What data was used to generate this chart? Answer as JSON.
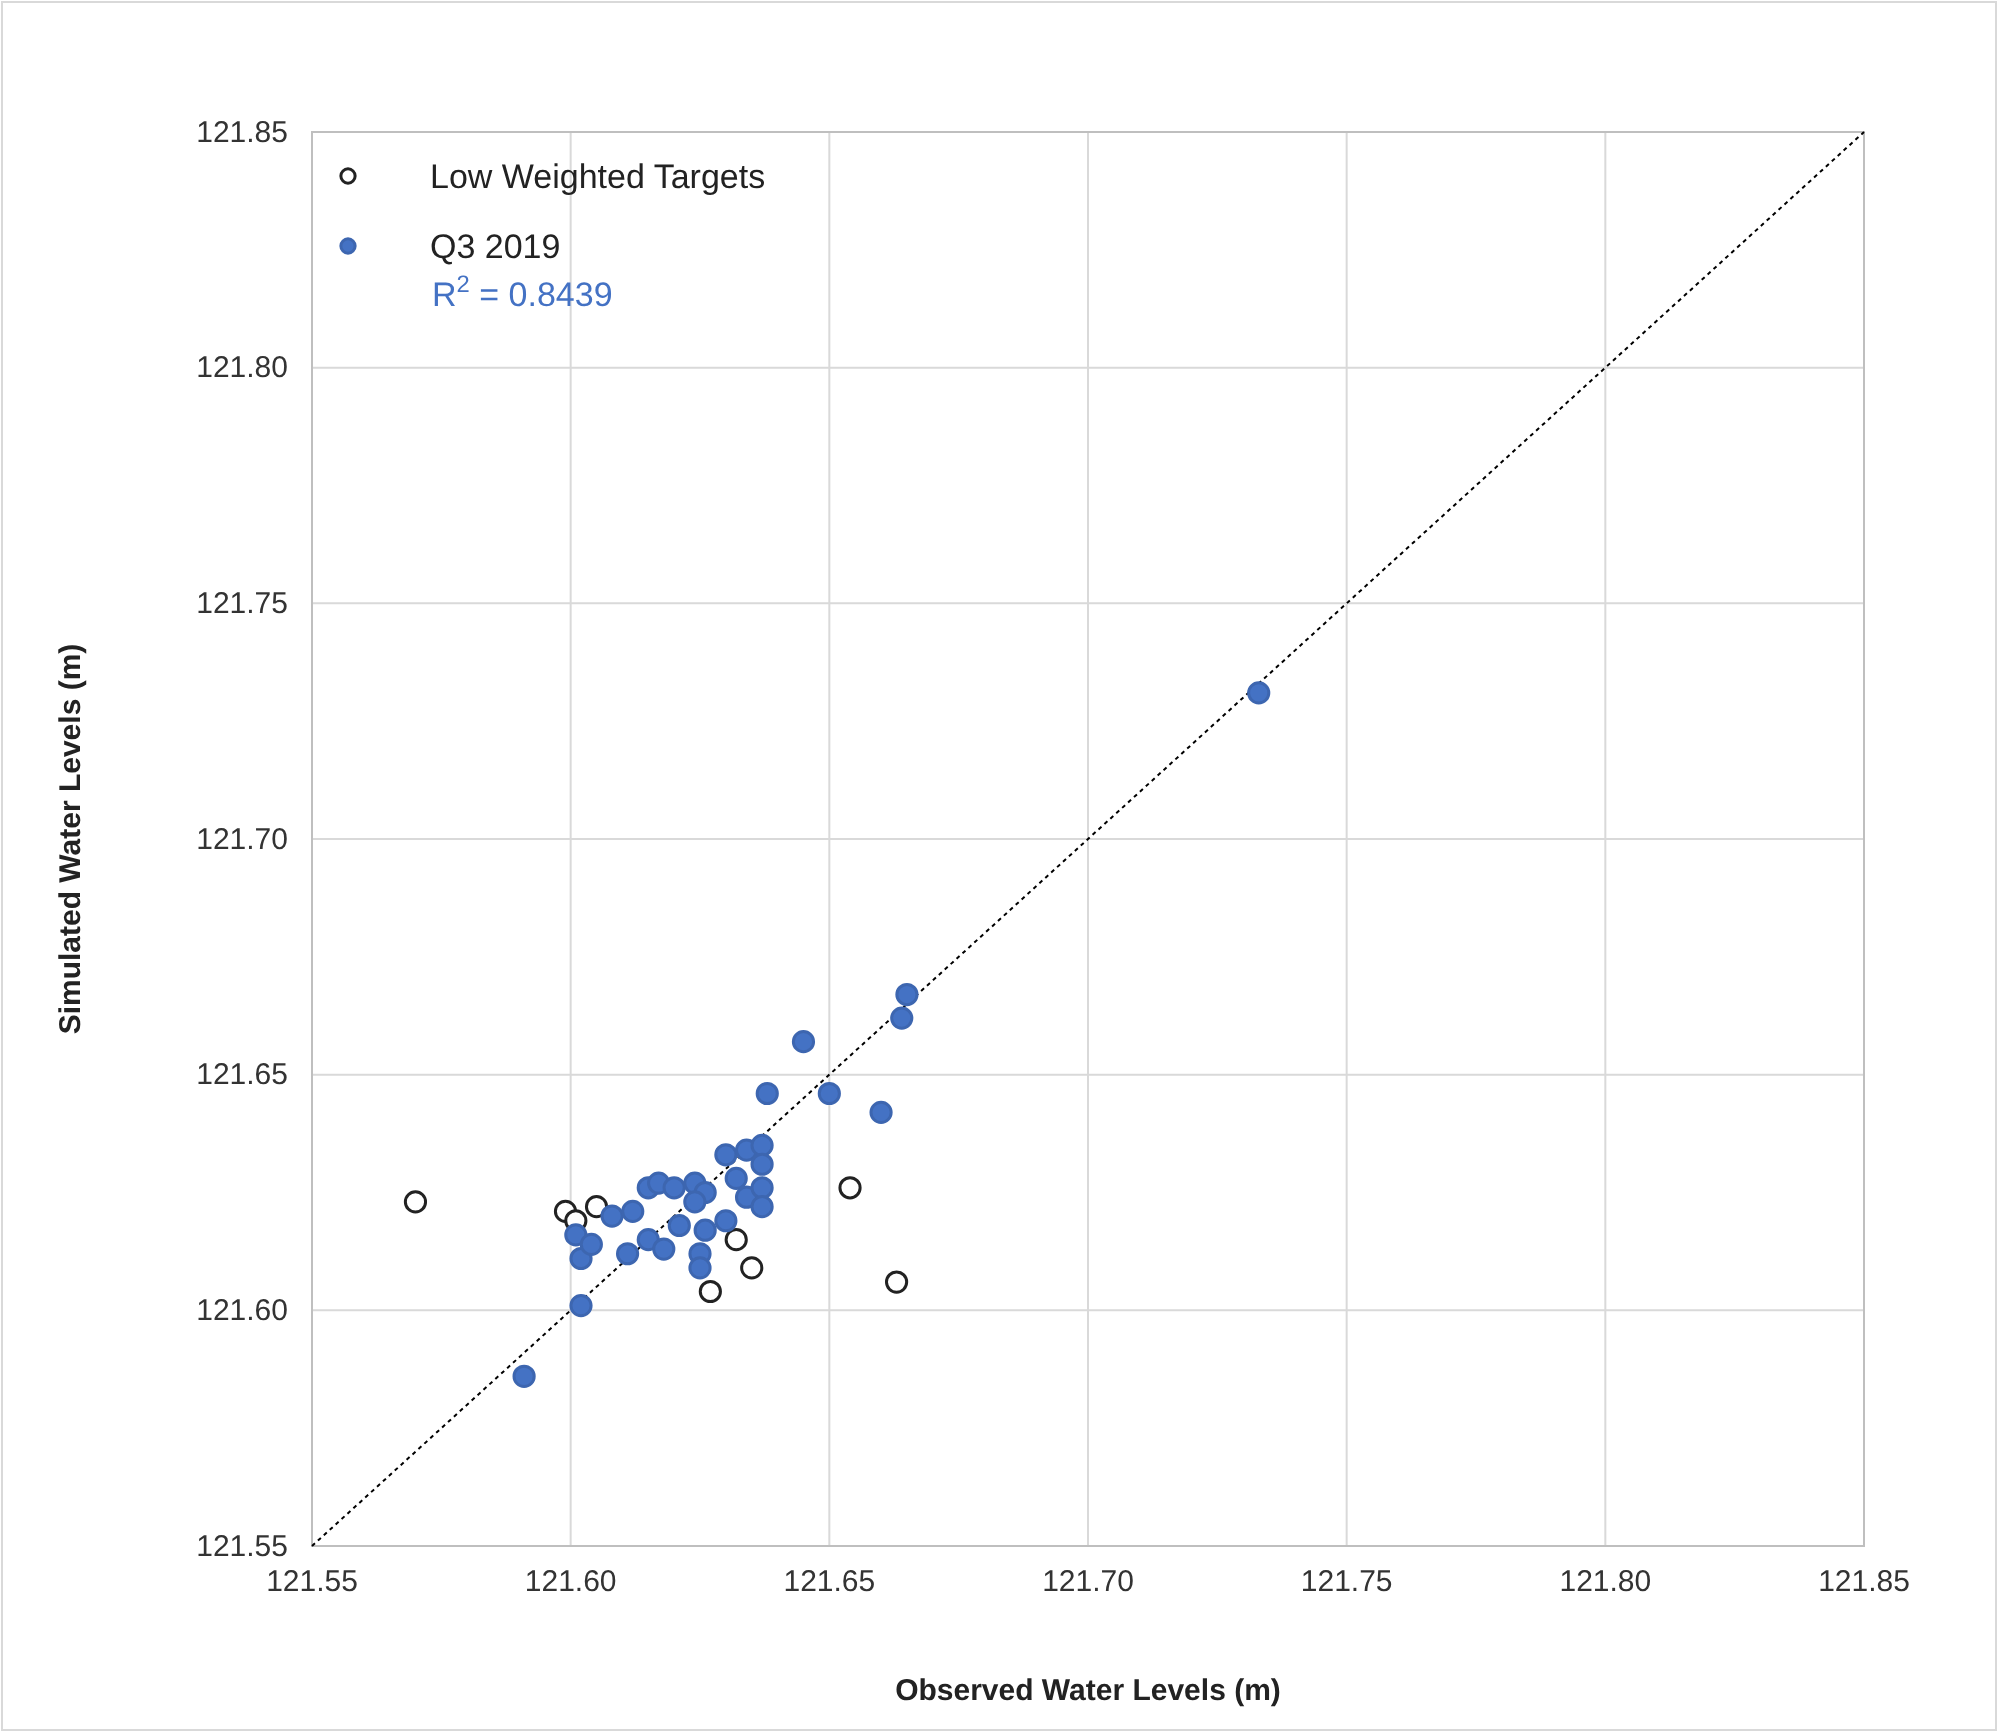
{
  "chart_data": {
    "type": "scatter",
    "xlabel": "Observed Water Levels (m)",
    "ylabel": "Simulated Water Levels (m)",
    "xlim": [
      121.55,
      121.85
    ],
    "ylim": [
      121.55,
      121.85
    ],
    "xticks": [
      {
        "value": 121.55,
        "label": "121.55"
      },
      {
        "value": 121.6,
        "label": "121.60"
      },
      {
        "value": 121.65,
        "label": "121.65"
      },
      {
        "value": 121.7,
        "label": "121.70"
      },
      {
        "value": 121.75,
        "label": "121.75"
      },
      {
        "value": 121.8,
        "label": "121.80"
      },
      {
        "value": 121.85,
        "label": "121.85"
      }
    ],
    "yticks": [
      {
        "value": 121.55,
        "label": "121.55"
      },
      {
        "value": 121.6,
        "label": "121.60"
      },
      {
        "value": 121.65,
        "label": "121.65"
      },
      {
        "value": 121.7,
        "label": "121.70"
      },
      {
        "value": 121.75,
        "label": "121.75"
      },
      {
        "value": 121.8,
        "label": "121.80"
      },
      {
        "value": 121.85,
        "label": "121.85"
      }
    ],
    "grid": true,
    "legend": "top left",
    "marker": "circle",
    "annotations": [
      "R$^{2}$ = 0.8439"
    ],
    "series": [
      {
        "type": "line",
        "color": "#000000",
        "line_style": "dotted",
        "marker": "none",
        "x": [
          121.55,
          121.85
        ],
        "values": [
          121.55,
          121.85
        ]
      },
      {
        "name": "Low Weighted Targets",
        "color": "#ffffff",
        "x": [
          121.57,
          121.599,
          121.601,
          121.605,
          121.627,
          121.632,
          121.635,
          121.654,
          121.663
        ],
        "values": [
          121.623,
          121.621,
          121.619,
          121.622,
          121.604,
          121.615,
          121.609,
          121.626,
          121.606
        ]
      },
      {
        "name": "Q3 2019",
        "color": "#4472c4",
        "x": [
          121.645,
          121.638,
          121.65,
          121.591,
          121.602,
          121.602,
          121.601,
          121.604,
          121.608,
          121.612,
          121.611,
          121.615,
          121.617,
          121.615,
          121.618,
          121.621,
          121.62,
          121.624,
          121.626,
          121.624,
          121.626,
          121.63,
          121.625,
          121.625,
          121.63,
          121.634,
          121.637,
          121.637,
          121.632,
          121.634,
          121.637,
          121.637,
          121.66,
          121.665,
          121.664,
          121.733
        ],
        "values": [
          121.657,
          121.646,
          121.646,
          121.586,
          121.601,
          121.611,
          121.616,
          121.614,
          121.62,
          121.621,
          121.612,
          121.626,
          121.627,
          121.615,
          121.613,
          121.618,
          121.626,
          121.627,
          121.625,
          121.623,
          121.617,
          121.619,
          121.612,
          121.609,
          121.633,
          121.634,
          121.635,
          121.631,
          121.628,
          121.624,
          121.626,
          121.622,
          121.642,
          121.667,
          121.662,
          121.731
        ]
      }
    ]
  }
}
